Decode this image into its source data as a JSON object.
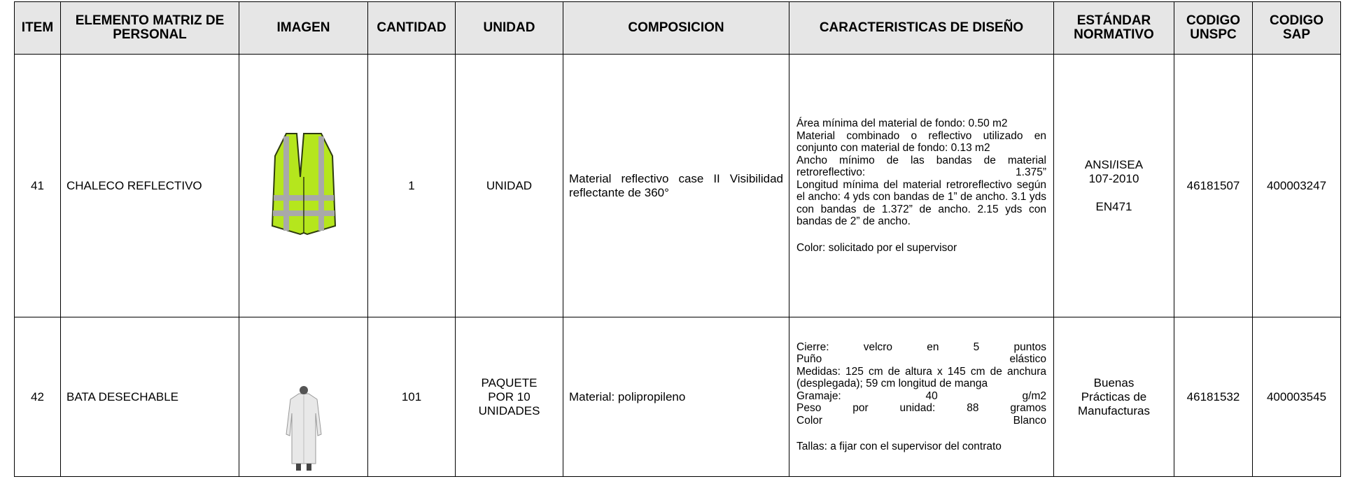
{
  "table": {
    "headers": [
      "ITEM",
      "ELEMENTO MATRIZ DE PERSONAL",
      "IMAGEN",
      "CANTIDAD",
      "UNIDAD",
      "COMPOSICION",
      "CARACTERISTICAS DE DISEÑO",
      "ESTÁNDAR NORMATIVO",
      "CODIGO UNSPC",
      "CODIGO SAP"
    ],
    "rows": [
      {
        "item": "41",
        "element": "CHALECO REFLECTIVO",
        "quantity": "1",
        "unit": "UNIDAD",
        "composition": "Material reflectivo case II Visibilidad reflectante de 360°",
        "characteristics": [
          "Área mínima del material de fondo: 0.50 m2",
          "Material combinado o reflectivo utilizado en conjunto con material de fondo: 0.13 m2",
          "Ancho mínimo de las bandas de material retroreflectivo: 1.375”",
          "Longitud mínima del material retroreflectivo según el ancho: 4 yds con bandas de 1” de ancho. 3.1 yds con bandas de 1.372” de ancho. 2.15 yds con bandas de 2” de ancho.",
          "Color: solicitado por el supervisor"
        ],
        "standard": [
          "ANSI/ISEA 107-2010",
          "EN471"
        ],
        "unspc": "46181507",
        "sap": "400003247"
      },
      {
        "item": "42",
        "element": "BATA DESECHABLE",
        "quantity": "101",
        "unit": "PAQUETE POR 10 UNIDADES",
        "composition": "Material: polipropileno",
        "characteristics": [
          "Cierre: velcro en 5 puntos",
          "Puño elástico",
          "Medidas: 125 cm de altura x 145 cm de anchura (desplegada); 59 cm longitud de manga",
          "Gramaje: 40 g/m2",
          "Peso por unidad: 88 gramos",
          "Color Blanco",
          "Tallas: a fijar con el supervisor del contrato"
        ],
        "standard": [
          "Buenas Prácticas de Manufacturas"
        ],
        "unspc": "46181532",
        "sap": "400003545"
      }
    ]
  }
}
